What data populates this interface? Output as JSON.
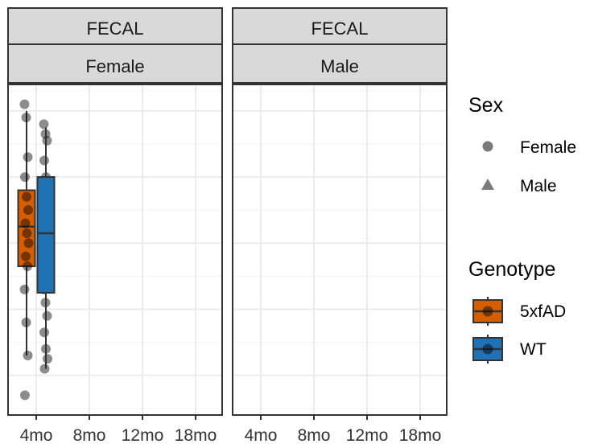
{
  "colors": {
    "5xfAD": "#D55E00",
    "WT": "#2171B5",
    "strip_fill": "#D9D9D9",
    "border": "#333333",
    "grid": "#EBEBEB",
    "point": "#000000"
  },
  "legend": {
    "placement": "right",
    "sex_title": "Sex",
    "sex_items": [
      {
        "label": "Female",
        "shape": "circle"
      },
      {
        "label": "Male",
        "shape": "triangle"
      }
    ],
    "genotype_title": "Genotype",
    "genotype_items": [
      {
        "label": "5xfAD",
        "color": "#D55E00"
      },
      {
        "label": "WT",
        "color": "#2171B5"
      }
    ]
  },
  "chart_data": {
    "type": "box",
    "categories": [
      "4mo",
      "8mo",
      "12mo",
      "18mo"
    ],
    "y_axis": {
      "range": [
        0,
        100
      ],
      "tick_labels_shown": false,
      "grid_major": [
        12,
        32,
        52,
        72,
        92
      ],
      "grid_minor": [
        2,
        22,
        42,
        62,
        82,
        98
      ]
    },
    "grid": true,
    "panels": [
      {
        "strip_top": "FECAL",
        "strip_bottom": "Female",
        "point_shape": "circle",
        "groups": [
          {
            "category": "4mo",
            "genotype": "5xfAD",
            "min": 18,
            "q1": 45,
            "median": 57,
            "q3": 68,
            "max": 92,
            "points": [
              94,
              90,
              78,
              72,
              66,
              62,
              58,
              55,
              52,
              48,
              45,
              38,
              28,
              18,
              6
            ]
          },
          {
            "category": "4mo",
            "genotype": "WT",
            "min": 14,
            "q1": 37,
            "median": 55,
            "q3": 72,
            "max": 87,
            "points": [
              88,
              85,
              83,
              77,
              72,
              68,
              60,
              55,
              50,
              46,
              42,
              38,
              34,
              30,
              25,
              20,
              17,
              14
            ]
          },
          {
            "category": "4mo",
            "genotype": "WT",
            "min": 14,
            "q1": 37,
            "median": 55,
            "q3": 72,
            "max": 87,
            "points": []
          }
        ]
      },
      {
        "strip_top": "FECAL",
        "strip_bottom": "Male",
        "point_shape": "triangle",
        "groups": []
      }
    ]
  }
}
